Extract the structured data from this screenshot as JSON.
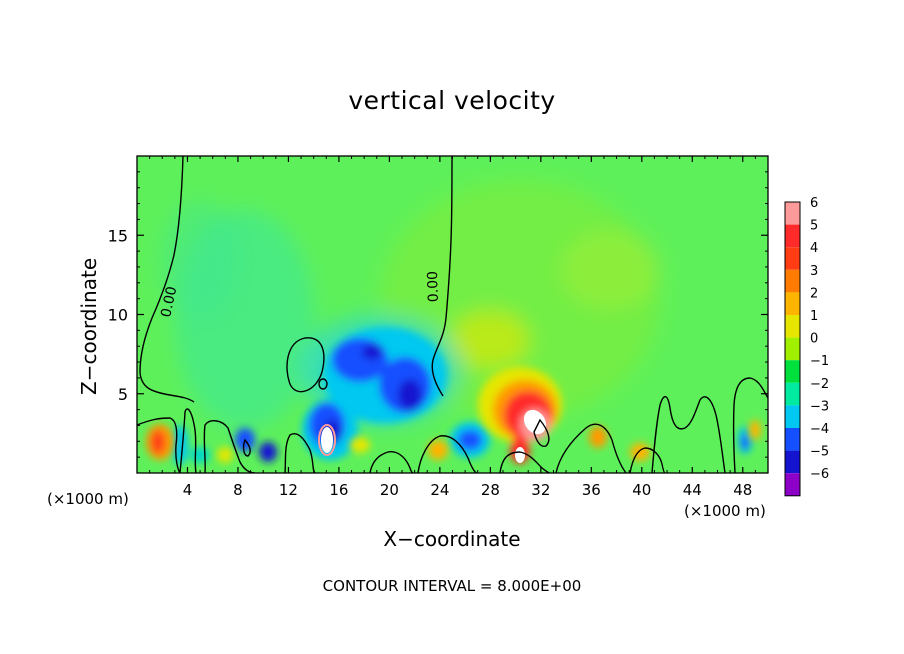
{
  "chart_data": {
    "type": "heatmap",
    "title": "vertical velocity",
    "xlabel": "X−coordinate",
    "ylabel": "Z−coordinate",
    "x_unit": "(×1000 m)",
    "xlim": [
      0,
      50
    ],
    "ylim": [
      0,
      20
    ],
    "x_ticks": [
      4,
      8,
      12,
      16,
      20,
      24,
      28,
      32,
      36,
      40,
      44,
      48
    ],
    "x_tick_labels": [
      "4",
      "8",
      "12",
      "16",
      "20",
      "24",
      "28",
      "32",
      "36",
      "40",
      "44",
      "48"
    ],
    "y_ticks": [
      5,
      10,
      15
    ],
    "y_tick_labels": [
      "5",
      "10",
      "15"
    ],
    "contour_label": "0.00",
    "contour_interval_text": "CONTOUR INTERVAL = 8.000E+00",
    "colorbar": {
      "levels": [
        6,
        5,
        4,
        3,
        2,
        1,
        0,
        -1,
        -2,
        -3,
        -4,
        -5,
        -6
      ],
      "labels": [
        "6",
        "5",
        "4",
        "3",
        "2",
        "1",
        "0",
        "−1",
        "−2",
        "−3",
        "−4",
        "−5",
        "−6"
      ],
      "colors": [
        "#ff9a9a",
        "#ff2a2a",
        "#ff3c14",
        "#ff7c00",
        "#ffb400",
        "#e6e600",
        "#a0f000",
        "#00e03c",
        "#00eaa0",
        "#00c8f0",
        "#1450ff",
        "#1414d0",
        "#8c00c8"
      ]
    },
    "background_color": "#5ef05a",
    "features": [
      {
        "kind": "updraft",
        "x": 31.5,
        "z": 3.0,
        "value": 6
      },
      {
        "kind": "updraft",
        "x": 30.0,
        "z": 1.5,
        "value": 6
      },
      {
        "kind": "updraft",
        "x": 32.5,
        "z": 5.5,
        "value": 2
      },
      {
        "kind": "updraft",
        "x": 2.0,
        "z": 2.0,
        "value": 3
      },
      {
        "kind": "updraft",
        "x": 15.3,
        "z": 2.2,
        "value": 6
      },
      {
        "kind": "downdraft",
        "x": 19.0,
        "z": 6.5,
        "value": -4
      },
      {
        "kind": "downdraft",
        "x": 22.0,
        "z": 5.0,
        "value": -5
      },
      {
        "kind": "downdraft",
        "x": 14.5,
        "z": 2.8,
        "value": -5
      },
      {
        "kind": "downdraft",
        "x": 26.5,
        "z": 2.2,
        "value": -4
      },
      {
        "kind": "downdraft",
        "x": 8.0,
        "z": 2.0,
        "value": -3
      },
      {
        "kind": "downdraft",
        "x": 10.2,
        "z": 1.4,
        "value": -4
      },
      {
        "kind": "downdraft",
        "x": 3.5,
        "z": 2.0,
        "value": -3
      },
      {
        "kind": "downdraft",
        "x": 48.5,
        "z": 2.0,
        "value": -3
      },
      {
        "kind": "weak_downdraft",
        "x": 8.5,
        "z": 12.0,
        "value": -1
      },
      {
        "kind": "weak_updraft",
        "x": 37.0,
        "z": 12.0,
        "value": 1
      }
    ]
  }
}
